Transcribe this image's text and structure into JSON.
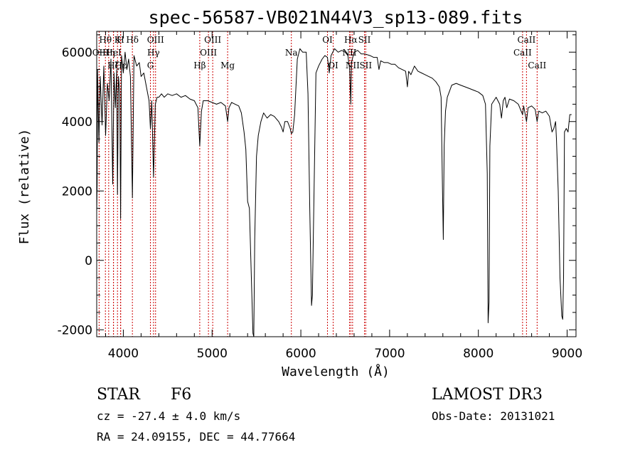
{
  "chart_data": {
    "type": "line",
    "title": "spec-56587-VB021N44V3_sp13-089.fits",
    "xlabel": "Wavelength (Å)",
    "ylabel": "Flux (relative)",
    "xlim": [
      3700,
      9100
    ],
    "ylim": [
      -2200,
      6600
    ],
    "xticks": [
      4000,
      5000,
      6000,
      7000,
      8000,
      9000
    ],
    "yticks": [
      -2000,
      0,
      2000,
      4000,
      6000
    ],
    "grid": false,
    "line_color": "#000000",
    "marker_color": "#cc0000",
    "lines": [
      {
        "label": "Hθ",
        "wavelength": 3798,
        "row": 0
      },
      {
        "label": "OII",
        "wavelength": 3727,
        "row": 1
      },
      {
        "label": "Hη",
        "wavelength": 3835,
        "row": 1
      },
      {
        "label": "K",
        "wavelength": 3934,
        "row": 0
      },
      {
        "label": "HeI",
        "wavelength": 3889,
        "row": 1
      },
      {
        "label": "H",
        "wavelength": 3969,
        "row": 0
      },
      {
        "label": "Hζ",
        "wavelength": 3889,
        "row": 2
      },
      {
        "label": "Hε",
        "wavelength": 3970,
        "row": 2
      },
      {
        "label": "Hδ",
        "wavelength": 4102,
        "row": 0
      },
      {
        "label": "OIII",
        "wavelength": 4363,
        "row": 0
      },
      {
        "label": "Hγ",
        "wavelength": 4340,
        "row": 1
      },
      {
        "label": "G",
        "wavelength": 4305,
        "row": 2
      },
      {
        "label": "Hβ",
        "wavelength": 4861,
        "row": 2
      },
      {
        "label": "OIII",
        "wavelength": 4959,
        "row": 1
      },
      {
        "label": "OIII",
        "wavelength": 5007,
        "row": 0
      },
      {
        "label": "Mg",
        "wavelength": 5175,
        "row": 2
      },
      {
        "label": "Na",
        "wavelength": 5893,
        "row": 1
      },
      {
        "label": "OI",
        "wavelength": 6300,
        "row": 0
      },
      {
        "label": "OI",
        "wavelength": 6364,
        "row": 2
      },
      {
        "label": "Hα",
        "wavelength": 6563,
        "row": 0
      },
      {
        "label": "NII",
        "wavelength": 6548,
        "row": 1
      },
      {
        "label": "NII",
        "wavelength": 6583,
        "row": 2
      },
      {
        "label": "SII",
        "wavelength": 6717,
        "row": 0
      },
      {
        "label": "SII",
        "wavelength": 6731,
        "row": 2
      },
      {
        "label": "CaII",
        "wavelength": 8498,
        "row": 1
      },
      {
        "label": "CaII",
        "wavelength": 8542,
        "row": 0
      },
      {
        "label": "CaII",
        "wavelength": 8662,
        "row": 2
      }
    ],
    "series": [
      {
        "points": [
          [
            3700,
            1400
          ],
          [
            3705,
            2200
          ],
          [
            3710,
            5500
          ],
          [
            3725,
            3400
          ],
          [
            3740,
            5300
          ],
          [
            3760,
            3900
          ],
          [
            3780,
            5600
          ],
          [
            3800,
            3600
          ],
          [
            3820,
            5100
          ],
          [
            3840,
            4600
          ],
          [
            3860,
            5800
          ],
          [
            3880,
            2200
          ],
          [
            3895,
            5400
          ],
          [
            3910,
            4400
          ],
          [
            3925,
            5500
          ],
          [
            3934,
            1900
          ],
          [
            3945,
            5300
          ],
          [
            3960,
            4800
          ],
          [
            3969,
            1200
          ],
          [
            3980,
            5900
          ],
          [
            4000,
            5400
          ],
          [
            4020,
            6000
          ],
          [
            4040,
            5500
          ],
          [
            4060,
            5800
          ],
          [
            4080,
            5300
          ],
          [
            4102,
            1800
          ],
          [
            4120,
            5900
          ],
          [
            4150,
            5600
          ],
          [
            4180,
            5700
          ],
          [
            4200,
            5300
          ],
          [
            4230,
            5400
          ],
          [
            4260,
            5000
          ],
          [
            4290,
            4600
          ],
          [
            4305,
            3800
          ],
          [
            4320,
            4600
          ],
          [
            4340,
            2400
          ],
          [
            4360,
            4500
          ],
          [
            4380,
            4700
          ],
          [
            4400,
            4700
          ],
          [
            4430,
            4800
          ],
          [
            4460,
            4700
          ],
          [
            4500,
            4800
          ],
          [
            4550,
            4750
          ],
          [
            4600,
            4800
          ],
          [
            4650,
            4700
          ],
          [
            4700,
            4750
          ],
          [
            4750,
            4650
          ],
          [
            4800,
            4600
          ],
          [
            4840,
            4400
          ],
          [
            4861,
            3300
          ],
          [
            4880,
            4300
          ],
          [
            4900,
            4600
          ],
          [
            4950,
            4600
          ],
          [
            5000,
            4550
          ],
          [
            5050,
            4500
          ],
          [
            5100,
            4550
          ],
          [
            5150,
            4450
          ],
          [
            5175,
            4000
          ],
          [
            5190,
            4400
          ],
          [
            5220,
            4550
          ],
          [
            5260,
            4500
          ],
          [
            5300,
            4450
          ],
          [
            5330,
            4250
          ],
          [
            5360,
            3700
          ],
          [
            5380,
            3200
          ],
          [
            5400,
            1700
          ],
          [
            5420,
            1500
          ],
          [
            5440,
            -300
          ],
          [
            5460,
            -2100
          ],
          [
            5470,
            -2200
          ],
          [
            5480,
            600
          ],
          [
            5500,
            3000
          ],
          [
            5520,
            3600
          ],
          [
            5550,
            4000
          ],
          [
            5580,
            4250
          ],
          [
            5620,
            4100
          ],
          [
            5660,
            4200
          ],
          [
            5700,
            4150
          ],
          [
            5750,
            4000
          ],
          [
            5780,
            3850
          ],
          [
            5800,
            3700
          ],
          [
            5820,
            4000
          ],
          [
            5850,
            4000
          ],
          [
            5880,
            3800
          ],
          [
            5893,
            3650
          ],
          [
            5910,
            3700
          ],
          [
            5930,
            4200
          ],
          [
            5960,
            5800
          ],
          [
            5990,
            6100
          ],
          [
            6020,
            6000
          ],
          [
            6060,
            6000
          ],
          [
            6080,
            4800
          ],
          [
            6100,
            1500
          ],
          [
            6120,
            -1300
          ],
          [
            6130,
            -1000
          ],
          [
            6150,
            2200
          ],
          [
            6170,
            5400
          ],
          [
            6200,
            5600
          ],
          [
            6240,
            5800
          ],
          [
            6270,
            5900
          ],
          [
            6300,
            5850
          ],
          [
            6320,
            5400
          ],
          [
            6340,
            5900
          ],
          [
            6380,
            6100
          ],
          [
            6420,
            6000
          ],
          [
            6460,
            6050
          ],
          [
            6500,
            6000
          ],
          [
            6530,
            5900
          ],
          [
            6550,
            5500
          ],
          [
            6560,
            4700
          ],
          [
            6563,
            4500
          ],
          [
            6570,
            5700
          ],
          [
            6600,
            6000
          ],
          [
            6640,
            6050
          ],
          [
            6680,
            5950
          ],
          [
            6720,
            5950
          ],
          [
            6780,
            5900
          ],
          [
            6820,
            5850
          ],
          [
            6860,
            5850
          ],
          [
            6880,
            5500
          ],
          [
            6900,
            5750
          ],
          [
            6940,
            5700
          ],
          [
            6980,
            5700
          ],
          [
            7020,
            5650
          ],
          [
            7060,
            5650
          ],
          [
            7100,
            5550
          ],
          [
            7140,
            5500
          ],
          [
            7180,
            5450
          ],
          [
            7200,
            5000
          ],
          [
            7215,
            5450
          ],
          [
            7240,
            5350
          ],
          [
            7280,
            5600
          ],
          [
            7320,
            5450
          ],
          [
            7360,
            5400
          ],
          [
            7400,
            5350
          ],
          [
            7440,
            5300
          ],
          [
            7480,
            5250
          ],
          [
            7520,
            5150
          ],
          [
            7560,
            5000
          ],
          [
            7580,
            4700
          ],
          [
            7595,
            2100
          ],
          [
            7605,
            600
          ],
          [
            7615,
            3300
          ],
          [
            7630,
            4300
          ],
          [
            7650,
            4700
          ],
          [
            7700,
            5050
          ],
          [
            7750,
            5100
          ],
          [
            7800,
            5050
          ],
          [
            7850,
            5000
          ],
          [
            7900,
            4950
          ],
          [
            7950,
            4900
          ],
          [
            8000,
            4850
          ],
          [
            8050,
            4750
          ],
          [
            8080,
            4500
          ],
          [
            8100,
            2500
          ],
          [
            8110,
            -1800
          ],
          [
            8120,
            -1200
          ],
          [
            8130,
            3300
          ],
          [
            8150,
            4500
          ],
          [
            8200,
            4700
          ],
          [
            8240,
            4500
          ],
          [
            8260,
            4100
          ],
          [
            8280,
            4600
          ],
          [
            8300,
            4700
          ],
          [
            8320,
            4400
          ],
          [
            8350,
            4650
          ],
          [
            8400,
            4600
          ],
          [
            8450,
            4500
          ],
          [
            8498,
            4200
          ],
          [
            8510,
            4450
          ],
          [
            8542,
            4000
          ],
          [
            8560,
            4400
          ],
          [
            8600,
            4450
          ],
          [
            8640,
            4350
          ],
          [
            8662,
            4000
          ],
          [
            8680,
            4300
          ],
          [
            8720,
            4250
          ],
          [
            8760,
            4300
          ],
          [
            8800,
            4150
          ],
          [
            8830,
            3700
          ],
          [
            8850,
            3800
          ],
          [
            8870,
            4000
          ],
          [
            8880,
            3500
          ],
          [
            8900,
            2000
          ],
          [
            8920,
            -500
          ],
          [
            8940,
            -1600
          ],
          [
            8950,
            -1700
          ],
          [
            8960,
            -500
          ],
          [
            8970,
            3700
          ],
          [
            8990,
            3800
          ],
          [
            9010,
            3700
          ],
          [
            9030,
            4200
          ],
          [
            9050,
            4200
          ]
        ]
      }
    ]
  },
  "info": {
    "object_class": "STAR",
    "subclass": "F6",
    "survey": "LAMOST DR3",
    "redshift": "cz = -27.4 ± 4.0 km/s",
    "obs_date": "Obs-Date: 20131021",
    "coords": "RA =  24.09155, DEC =  44.77664"
  }
}
